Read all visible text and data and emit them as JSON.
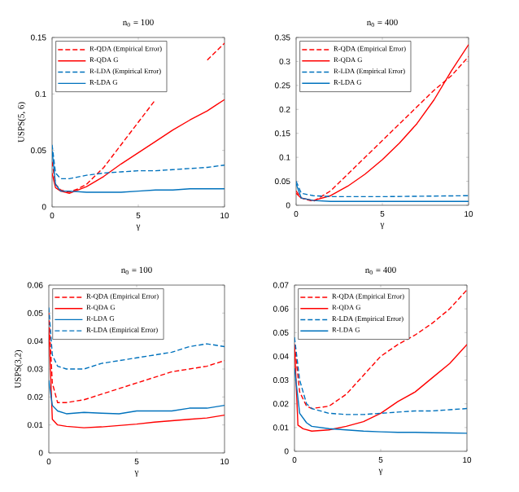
{
  "chart_data": [
    {
      "type": "line",
      "title": "n$_{0}$ = 100",
      "xlabel": "γ",
      "ylabel": "USPS(5, 6)",
      "xlim": [
        0,
        10
      ],
      "ylim": [
        0,
        0.15
      ],
      "xticks": [
        0,
        5,
        10
      ],
      "yticks": [
        0,
        0.05,
        0.1,
        0.15
      ],
      "legend": "top left",
      "series": [
        {
          "name": "R-QDA (Empirical Error)",
          "color": "#ff0000",
          "line_style": "dashed",
          "x": [
            0,
            0.2,
            0.5,
            1,
            1.5,
            2,
            3,
            4,
            5,
            6,
            7,
            8,
            9,
            10
          ],
          "values": [
            0.04,
            0.02,
            0.015,
            0.013,
            0.016,
            0.02,
            0.035,
            0.055,
            0.075,
            0.095,
            null,
            null,
            0.13,
            0.145
          ]
        },
        {
          "name": "R-QDA G",
          "color": "#ff0000",
          "line_style": "solid",
          "x": [
            0,
            0.2,
            0.5,
            1,
            2,
            3,
            4,
            5,
            6,
            7,
            8,
            9,
            9.5,
            10
          ],
          "values": [
            0.03,
            0.017,
            0.014,
            0.012,
            0.018,
            0.027,
            0.038,
            0.048,
            0.058,
            0.068,
            0.077,
            0.085,
            0.09,
            0.095
          ]
        },
        {
          "name": "R-LDA (Empirical Error)",
          "color": "#0072bd",
          "line_style": "dashed",
          "x": [
            0,
            0.2,
            0.5,
            1,
            2,
            3,
            4,
            5,
            6,
            7,
            8,
            9,
            10
          ],
          "values": [
            0.055,
            0.03,
            0.025,
            0.025,
            0.028,
            0.03,
            0.031,
            0.032,
            0.032,
            0.033,
            0.034,
            0.035,
            0.037
          ]
        },
        {
          "name": "R-LDA G",
          "color": "#0072bd",
          "line_style": "solid",
          "x": [
            0,
            0.2,
            0.5,
            1,
            2,
            3,
            4,
            5,
            6,
            7,
            8,
            9,
            10
          ],
          "values": [
            0.05,
            0.02,
            0.014,
            0.014,
            0.013,
            0.013,
            0.013,
            0.014,
            0.015,
            0.015,
            0.016,
            0.016,
            0.016
          ]
        }
      ]
    },
    {
      "type": "line",
      "title": "n$_{0}$ = 400",
      "xlabel": "γ",
      "xlim": [
        0,
        10
      ],
      "ylim": [
        0,
        0.35
      ],
      "xticks": [
        0,
        5,
        10
      ],
      "yticks": [
        0,
        0.05,
        0.1,
        0.15,
        0.2,
        0.25,
        0.3,
        0.35
      ],
      "legend": "top left",
      "series": [
        {
          "name": "R-QDA (Empirical Error)",
          "color": "#ff0000",
          "line_style": "dashed",
          "x": [
            0,
            0.3,
            1,
            2,
            3,
            4,
            5,
            6,
            7,
            8,
            9,
            10
          ],
          "values": [
            0.03,
            0.015,
            0.008,
            0.03,
            0.065,
            0.1,
            0.135,
            0.17,
            0.205,
            0.24,
            0.27,
            0.31
          ]
        },
        {
          "name": "R-QDA G",
          "color": "#ff0000",
          "line_style": "solid",
          "x": [
            0,
            0.3,
            1,
            2,
            3,
            4,
            5,
            6,
            7,
            8,
            9,
            10
          ],
          "values": [
            0.025,
            0.015,
            0.01,
            0.02,
            0.04,
            0.065,
            0.095,
            0.13,
            0.17,
            0.22,
            0.28,
            0.335
          ]
        },
        {
          "name": "R-LDA (Empirical Error)",
          "color": "#0072bd",
          "line_style": "dashed",
          "x": [
            0,
            0.3,
            1,
            2,
            5,
            10
          ],
          "values": [
            0.05,
            0.025,
            0.02,
            0.018,
            0.018,
            0.02
          ]
        },
        {
          "name": "R-LDA G",
          "color": "#0072bd",
          "line_style": "solid",
          "x": [
            0,
            0.3,
            1,
            2,
            5,
            10
          ],
          "values": [
            0.045,
            0.015,
            0.01,
            0.008,
            0.008,
            0.008
          ]
        }
      ]
    },
    {
      "type": "line",
      "title": "n$_{0}$ = 100",
      "xlabel": "γ",
      "ylabel": "USPS(3,2)",
      "xlim": [
        0,
        10
      ],
      "ylim": [
        0,
        0.06
      ],
      "xticks": [
        0,
        5,
        10
      ],
      "yticks": [
        0,
        0.01,
        0.02,
        0.03,
        0.04,
        0.05,
        0.06
      ],
      "legend": "top left",
      "series": [
        {
          "name": "R-QDA (Empirical Error)",
          "color": "#ff0000",
          "line_style": "dashed",
          "x": [
            0,
            0.2,
            0.5,
            1,
            2,
            3,
            4,
            5,
            6,
            7,
            8,
            9,
            10
          ],
          "values": [
            0.05,
            0.025,
            0.018,
            0.018,
            0.019,
            0.021,
            0.023,
            0.025,
            0.027,
            0.029,
            0.03,
            0.031,
            0.033
          ]
        },
        {
          "name": "R-QDA G",
          "color": "#ff0000",
          "line_style": "solid",
          "x": [
            0,
            0.2,
            0.5,
            1,
            2,
            3,
            4,
            5,
            6,
            7,
            8,
            9,
            10
          ],
          "values": [
            0.045,
            0.012,
            0.01,
            0.0095,
            0.009,
            0.0093,
            0.0098,
            0.0103,
            0.011,
            0.0115,
            0.012,
            0.0125,
            0.0135
          ]
        },
        {
          "name": "R-LDA G",
          "color": "#0072bd",
          "line_style": "solid",
          "x": [
            0,
            0.2,
            0.5,
            1,
            2,
            3,
            4,
            5,
            6,
            7,
            8,
            9,
            10
          ],
          "values": [
            0.026,
            0.017,
            0.015,
            0.014,
            0.0145,
            0.0142,
            0.014,
            0.015,
            0.015,
            0.015,
            0.016,
            0.016,
            0.017
          ]
        },
        {
          "name": "R-LDA (Empirical Error)",
          "color": "#0072bd",
          "line_style": "dashed",
          "x": [
            0,
            0.2,
            0.5,
            1,
            2,
            3,
            4,
            5,
            6,
            7,
            8,
            9,
            10
          ],
          "values": [
            0.052,
            0.035,
            0.031,
            0.03,
            0.03,
            0.032,
            0.033,
            0.034,
            0.035,
            0.036,
            0.038,
            0.039,
            0.038
          ]
        }
      ]
    },
    {
      "type": "line",
      "title": "n$_{0}$ = 400",
      "xlabel": "γ",
      "xlim": [
        0,
        10
      ],
      "ylim": [
        0,
        0.07
      ],
      "xticks": [
        0,
        5,
        10
      ],
      "yticks": [
        0,
        0.01,
        0.02,
        0.03,
        0.04,
        0.05,
        0.06,
        0.07
      ],
      "legend": "top left",
      "series": [
        {
          "name": "R-QDA (Empirical Error)",
          "color": "#ff0000",
          "line_style": "dashed",
          "x": [
            0,
            0.3,
            0.7,
            1,
            2,
            3,
            4,
            5,
            6,
            7,
            8,
            9,
            10
          ],
          "values": [
            0.045,
            0.025,
            0.019,
            0.018,
            0.019,
            0.024,
            0.032,
            0.04,
            0.045,
            0.049,
            0.054,
            0.06,
            0.068
          ]
        },
        {
          "name": "R-QDA G",
          "color": "#ff0000",
          "line_style": "solid",
          "x": [
            0,
            0.2,
            0.5,
            1,
            2,
            3,
            4,
            5,
            6,
            7,
            8,
            9,
            10
          ],
          "values": [
            0.045,
            0.011,
            0.0095,
            0.0085,
            0.009,
            0.0105,
            0.0125,
            0.016,
            0.021,
            0.025,
            0.031,
            0.037,
            0.045
          ]
        },
        {
          "name": "R-LDA (Empirical Error)",
          "color": "#0072bd",
          "line_style": "dashed",
          "x": [
            0,
            0.3,
            0.7,
            1,
            2,
            3,
            4,
            5,
            6,
            7,
            8,
            9,
            10
          ],
          "values": [
            0.048,
            0.03,
            0.02,
            0.018,
            0.016,
            0.0155,
            0.0155,
            0.016,
            0.0165,
            0.017,
            0.017,
            0.0175,
            0.018
          ]
        },
        {
          "name": "R-LDA G",
          "color": "#0072bd",
          "line_style": "solid",
          "x": [
            0,
            0.3,
            0.7,
            1,
            2,
            3,
            4,
            5,
            6,
            7,
            8,
            9,
            10
          ],
          "values": [
            0.035,
            0.016,
            0.012,
            0.0105,
            0.0095,
            0.009,
            0.0085,
            0.0082,
            0.008,
            0.008,
            0.0078,
            0.0077,
            0.0076
          ]
        }
      ]
    }
  ]
}
